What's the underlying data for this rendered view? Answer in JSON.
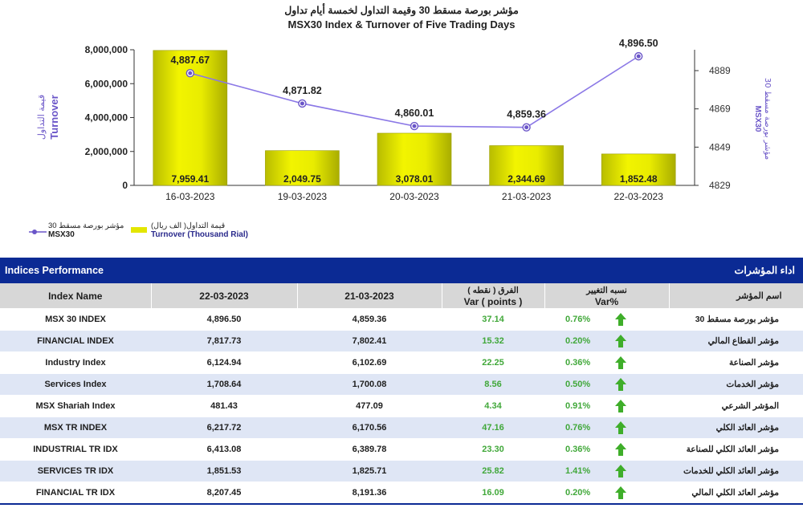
{
  "chart_data": {
    "type": "bar+line",
    "title_ar": "مؤشر بورصة مسقط 30 وقيمة التداول لخمسة أيام تداول",
    "title_en": "MSX30 Index & Turnover of Five Trading Days",
    "categories": [
      "16-03-2023",
      "19-03-2023",
      "20-03-2023",
      "21-03-2023",
      "22-03-2023"
    ],
    "series": [
      {
        "name": "Turnover (Thousand Rial)",
        "name_ar": "قيمة التداول( الف ريال)",
        "kind": "bar",
        "axis": "left",
        "values": [
          7959.41,
          2049.75,
          3078.01,
          2344.69,
          1852.48
        ],
        "labels": [
          "7,959.41",
          "2,049.75",
          "3,078.01",
          "2,344.69",
          "1,852.48"
        ],
        "color": "#e3e600"
      },
      {
        "name": "MSX30",
        "name_ar": "مؤشر بورصة مسقط 30",
        "kind": "line",
        "axis": "right",
        "values": [
          4887.67,
          4871.82,
          4860.01,
          4859.36,
          4896.5
        ],
        "labels": [
          "4,887.67",
          "4,871.82",
          "4,860.01",
          "4,859.36",
          "4,896.50"
        ],
        "color": "#8b78e6"
      }
    ],
    "left_axis": {
      "label_ar": "قيمة التداول",
      "label_en": "Turnover",
      "range": [
        0,
        8000000
      ],
      "ticks": [
        0,
        2000000,
        4000000,
        6000000,
        8000000
      ],
      "tick_labels": [
        "0",
        "2,000,000",
        "4,000,000",
        "6,000,000",
        "8,000,000"
      ]
    },
    "right_axis": {
      "label_ar": "مؤشر بورصة مسقط 30",
      "label_en": "MSX30",
      "range": [
        4829,
        4899
      ],
      "ticks": [
        4829,
        4849,
        4869,
        4889
      ],
      "tick_labels": [
        "4829",
        "4849",
        "4869",
        "4889"
      ]
    },
    "legend": {
      "line_ar": "مؤشر بورصة مسقط 30",
      "line_en": "MSX30",
      "bar_ar": "قيمة التداول( الف ريال)",
      "bar_en": "Turnover (Thousand Rial)",
      "placement": "bottom-left"
    }
  },
  "performance": {
    "title_en": "Indices Performance",
    "title_ar": "اداء المؤشرات",
    "headers": {
      "index_name": "Index Name",
      "date_current": "22-03-2023",
      "date_previous": "21-03-2023",
      "var_ar": "الفرق ( نقطه )",
      "var_en": "Var ( points )",
      "pct_ar": "نسبه التغيير",
      "pct_en": "Var%",
      "name_ar": "اسم المؤشر"
    },
    "rows": [
      {
        "name": "MSX 30 INDEX",
        "current": "4,896.50",
        "previous": "4,859.36",
        "var": "37.14",
        "pct": "0.76%",
        "name_ar": "مؤشر بورصة مسقط 30",
        "trend": "up-arrow-icon"
      },
      {
        "name": "FINANCIAL INDEX",
        "current": "7,817.73",
        "previous": "7,802.41",
        "var": "15.32",
        "pct": "0.20%",
        "name_ar": "مؤشر القطاع المالي",
        "trend": "up-arrow-icon"
      },
      {
        "name": "Industry Index",
        "current": "6,124.94",
        "previous": "6,102.69",
        "var": "22.25",
        "pct": "0.36%",
        "name_ar": "مؤشر الصناعة",
        "trend": "up-arrow-icon"
      },
      {
        "name": "Services Index",
        "current": "1,708.64",
        "previous": "1,700.08",
        "var": "8.56",
        "pct": "0.50%",
        "name_ar": "مؤشر الخدمات",
        "trend": "up-arrow-icon"
      },
      {
        "name": "MSX Shariah Index",
        "current": "481.43",
        "previous": "477.09",
        "var": "4.34",
        "pct": "0.91%",
        "name_ar": "المؤشر الشرعي",
        "trend": "up-arrow-icon"
      },
      {
        "name": "MSX TR INDEX",
        "current": "6,217.72",
        "previous": "6,170.56",
        "var": "47.16",
        "pct": "0.76%",
        "name_ar": "مؤشر العائد الكلي",
        "trend": "up-arrow-icon"
      },
      {
        "name": "INDUSTRIAL TR IDX",
        "current": "6,413.08",
        "previous": "6,389.78",
        "var": "23.30",
        "pct": "0.36%",
        "name_ar": "مؤشر العائد الكلي للصناعة",
        "trend": "up-arrow-icon"
      },
      {
        "name": "SERVICES TR IDX",
        "current": "1,851.53",
        "previous": "1,825.71",
        "var": "25.82",
        "pct": "1.41%",
        "name_ar": "مؤشر العائد الكلي للخدمات",
        "trend": "up-arrow-icon"
      },
      {
        "name": "FINANCIAL TR IDX",
        "current": "8,207.45",
        "previous": "8,191.36",
        "var": "16.09",
        "pct": "0.20%",
        "name_ar": "مؤشر العائد الكلي المالي",
        "trend": "up-arrow-icon"
      }
    ]
  },
  "colors": {
    "banner": "#0b2a94",
    "up": "#3fae2a",
    "bar": "#e3e600",
    "line": "#8b78e6",
    "row_alt": "#dfe6f5"
  }
}
